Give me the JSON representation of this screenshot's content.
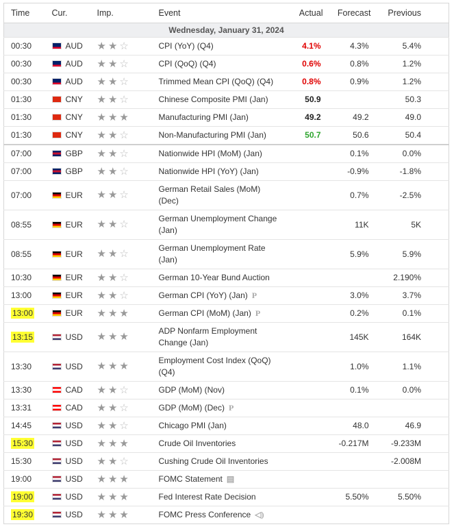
{
  "header": {
    "columns": [
      "Time",
      "Cur.",
      "Imp.",
      "Event",
      "Actual",
      "Forecast",
      "Previous"
    ],
    "date": "Wednesday, January 31, 2024"
  },
  "flags": {
    "AUD": [
      "#012169",
      "#012169",
      "#e4002b"
    ],
    "CNY": [
      "#de2910",
      "#de2910",
      "#de2910"
    ],
    "GBP": [
      "#012169",
      "#c8102e",
      "#012169"
    ],
    "EUR": [
      "#000000",
      "#dd0000",
      "#ffce00"
    ],
    "USD": [
      "#b22234",
      "#ffffff",
      "#3c3b6e"
    ],
    "CAD": [
      "#ff0000",
      "#ffffff",
      "#ff0000"
    ]
  },
  "highlight_color": "#ffff33",
  "rows": [
    {
      "time": "00:30",
      "currency": "AUD",
      "importance": 2,
      "event": "CPI (YoY) (Q4)",
      "actual": "4.1%",
      "actual_color": "#e00000",
      "forecast": "4.3%",
      "previous": "5.4%"
    },
    {
      "time": "00:30",
      "currency": "AUD",
      "importance": 2,
      "event": "CPI (QoQ) (Q4)",
      "actual": "0.6%",
      "actual_color": "#e00000",
      "forecast": "0.8%",
      "previous": "1.2%"
    },
    {
      "time": "00:30",
      "currency": "AUD",
      "importance": 2,
      "event": "Trimmed Mean CPI (QoQ) (Q4)",
      "actual": "0.8%",
      "actual_color": "#e00000",
      "forecast": "0.9%",
      "previous": "1.2%"
    },
    {
      "time": "01:30",
      "currency": "CNY",
      "importance": 2,
      "event": "Chinese Composite PMI (Jan)",
      "actual": "50.9",
      "actual_color": "#222222",
      "previous": "50.3"
    },
    {
      "time": "01:30",
      "currency": "CNY",
      "importance": 3,
      "event": "Manufacturing PMI (Jan)",
      "actual": "49.2",
      "actual_color": "#222222",
      "forecast": "49.2",
      "previous": "49.0"
    },
    {
      "time": "01:30",
      "currency": "CNY",
      "importance": 2,
      "event": "Non-Manufacturing PMI (Jan)",
      "actual": "50.7",
      "actual_color": "#2ea52e",
      "forecast": "50.6",
      "previous": "50.4"
    },
    {
      "time": "07:00",
      "currency": "GBP",
      "importance": 2,
      "event": "Nationwide HPI (MoM) (Jan)",
      "forecast": "0.1%",
      "previous": "0.0%",
      "group_start": true
    },
    {
      "time": "07:00",
      "currency": "GBP",
      "importance": 2,
      "event": "Nationwide HPI (YoY) (Jan)",
      "forecast": "-0.9%",
      "previous": "-1.8%"
    },
    {
      "time": "07:00",
      "currency": "EUR",
      "importance": 2,
      "event": "German Retail Sales (MoM) (Dec)",
      "forecast": "0.7%",
      "previous": "-2.5%"
    },
    {
      "time": "08:55",
      "currency": "EUR",
      "importance": 2,
      "event": "German Unemployment Change (Jan)",
      "forecast": "11K",
      "previous": "5K"
    },
    {
      "time": "08:55",
      "currency": "EUR",
      "importance": 2,
      "event": "German Unemployment Rate (Jan)",
      "forecast": "5.9%",
      "previous": "5.9%"
    },
    {
      "time": "10:30",
      "currency": "EUR",
      "importance": 2,
      "event": "German 10-Year Bund Auction",
      "previous": "2.190%"
    },
    {
      "time": "13:00",
      "currency": "EUR",
      "importance": 2,
      "event": "German CPI (YoY) (Jan)",
      "note": "P",
      "forecast": "3.0%",
      "previous": "3.7%"
    },
    {
      "time": "13:00",
      "currency": "EUR",
      "importance": 3,
      "event": "German CPI (MoM) (Jan)",
      "note": "P",
      "forecast": "0.2%",
      "previous": "0.1%",
      "highlight": true
    },
    {
      "time": "13:15",
      "currency": "USD",
      "importance": 3,
      "event": "ADP Nonfarm Employment Change (Jan)",
      "forecast": "145K",
      "previous": "164K",
      "highlight": true
    },
    {
      "time": "13:30",
      "currency": "USD",
      "importance": 3,
      "event": "Employment Cost Index (QoQ) (Q4)",
      "forecast": "1.0%",
      "previous": "1.1%"
    },
    {
      "time": "13:30",
      "currency": "CAD",
      "importance": 2,
      "event": "GDP (MoM) (Nov)",
      "forecast": "0.1%",
      "previous": "0.0%"
    },
    {
      "time": "13:31",
      "currency": "CAD",
      "importance": 2,
      "event": "GDP (MoM) (Dec)",
      "note": "P"
    },
    {
      "time": "14:45",
      "currency": "USD",
      "importance": 2,
      "event": "Chicago PMI (Jan)",
      "forecast": "48.0",
      "previous": "46.9"
    },
    {
      "time": "15:30",
      "currency": "USD",
      "importance": 3,
      "event": "Crude Oil Inventories",
      "forecast": "-0.217M",
      "previous": "-9.233M",
      "highlight": true
    },
    {
      "time": "15:30",
      "currency": "USD",
      "importance": 2,
      "event": "Cushing Crude Oil Inventories",
      "previous": "-2.008M"
    },
    {
      "time": "19:00",
      "currency": "USD",
      "importance": 3,
      "event": "FOMC Statement",
      "note": "▤"
    },
    {
      "time": "19:00",
      "currency": "USD",
      "importance": 3,
      "event": "Fed Interest Rate Decision",
      "forecast": "5.50%",
      "previous": "5.50%",
      "highlight": true
    },
    {
      "time": "19:30",
      "currency": "USD",
      "importance": 3,
      "event": "FOMC Press Conference",
      "note": "◁)",
      "highlight": true
    }
  ]
}
